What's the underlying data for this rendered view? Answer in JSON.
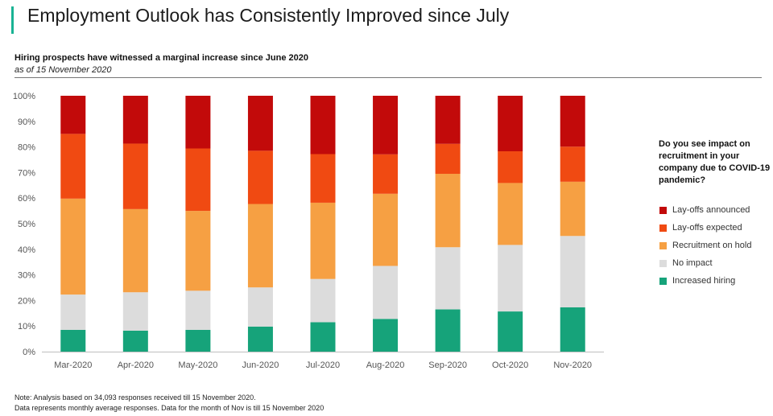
{
  "header": {
    "title": "Employment Outlook has Consistently Improved since July",
    "accent_color": "#19b394"
  },
  "chart_data": {
    "type": "bar",
    "stacked": true,
    "subtitle": "Hiring prospects have witnessed a marginal increase since June 2020",
    "as_of": "as of 15 November 2020",
    "categories": [
      "Mar-2020",
      "Apr-2020",
      "May-2020",
      "Jun-2020",
      "Jul-2020",
      "Aug-2020",
      "Sep-2020",
      "Oct-2020",
      "Nov-2020"
    ],
    "ylim": [
      0,
      100
    ],
    "yticks": [
      "0%",
      "10%",
      "20%",
      "30%",
      "40%",
      "50%",
      "60%",
      "70%",
      "80%",
      "90%",
      "100%"
    ],
    "grid": false,
    "legend_title": "Do you see impact on recruitment in your company due to COVID-19 pandemic?",
    "legend_position": "right",
    "series": [
      {
        "name": "Increased hiring",
        "color": "#16a37a",
        "values": [
          8.5,
          8.2,
          8.5,
          9.8,
          11.5,
          12.8,
          16.5,
          15.7,
          17.3
        ]
      },
      {
        "name": "No impact",
        "color": "#dcdcdc",
        "values": [
          13.8,
          15.0,
          15.3,
          15.3,
          16.9,
          20.7,
          24.3,
          26.0,
          27.9
        ]
      },
      {
        "name": "Recruitment on hold",
        "color": "#f6a043",
        "values": [
          37.5,
          32.5,
          31.2,
          32.6,
          29.8,
          28.2,
          28.7,
          24.2,
          21.2
        ]
      },
      {
        "name": "Lay-offs expected",
        "color": "#f04a12",
        "values": [
          25.3,
          25.6,
          24.4,
          20.8,
          19.0,
          15.4,
          11.7,
          12.4,
          13.7
        ]
      },
      {
        "name": "Lay-offs announced",
        "color": "#c20a0a",
        "values": [
          14.9,
          18.7,
          20.6,
          21.5,
          22.8,
          22.9,
          18.8,
          21.7,
          19.9
        ]
      }
    ]
  },
  "legend_order": [
    "Lay-offs announced",
    "Lay-offs expected",
    "Recruitment on hold",
    "No impact",
    "Increased hiring"
  ],
  "notes": {
    "line1": "Note: Analysis based on 34,093 responses received till 15 November 2020.",
    "line2": "Data represents monthly average responses. Data for the month of Nov is till 15 November 2020"
  }
}
